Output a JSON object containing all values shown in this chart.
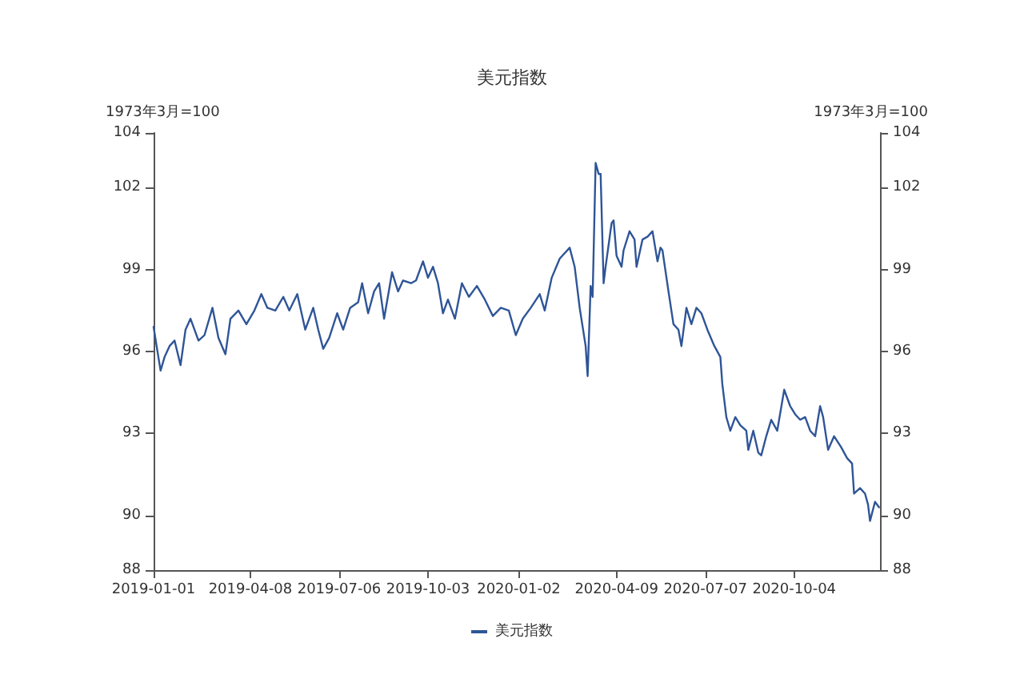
{
  "chart_data": {
    "type": "line",
    "title": "美元指数",
    "ylabel": "1973年3月=100",
    "y2label": "1973年3月=100",
    "xlim": [
      "2019-01-01",
      "2020-12-29"
    ],
    "xticks": [
      "2019-01-01",
      "2019-04-08",
      "2019-07-06",
      "2019-10-03",
      "2020-01-02",
      "2020-04-09",
      "2020-07-07",
      "2020-10-04"
    ],
    "ylim": [
      88,
      104
    ],
    "yticks": [
      88,
      90,
      93,
      96,
      99,
      102,
      104
    ],
    "y2lim": [
      88,
      104
    ],
    "y2ticks": [
      88,
      90,
      93,
      96,
      99,
      102,
      104
    ],
    "grid": false,
    "legend": "bottom",
    "marker": "none",
    "line_style": "solid",
    "x": [
      "2019-01-01",
      "2019-01-04",
      "2019-01-08",
      "2019-01-12",
      "2019-01-17",
      "2019-01-22",
      "2019-01-28",
      "2019-02-02",
      "2019-02-07",
      "2019-02-15",
      "2019-02-21",
      "2019-03-01",
      "2019-03-07",
      "2019-03-14",
      "2019-03-19",
      "2019-03-27",
      "2019-04-04",
      "2019-04-12",
      "2019-04-19",
      "2019-04-25",
      "2019-05-03",
      "2019-05-11",
      "2019-05-17",
      "2019-05-25",
      "2019-06-02",
      "2019-06-10",
      "2019-06-15",
      "2019-06-20",
      "2019-06-26",
      "2019-07-04",
      "2019-07-10",
      "2019-07-17",
      "2019-07-25",
      "2019-07-29",
      "2019-08-04",
      "2019-08-10",
      "2019-08-15",
      "2019-08-20",
      "2019-08-28",
      "2019-09-03",
      "2019-09-08",
      "2019-09-16",
      "2019-09-21",
      "2019-09-28",
      "2019-10-03",
      "2019-10-08",
      "2019-10-13",
      "2019-10-18",
      "2019-10-23",
      "2019-10-30",
      "2019-11-06",
      "2019-11-13",
      "2019-11-21",
      "2019-11-29",
      "2019-12-07",
      "2019-12-15",
      "2019-12-23",
      "2019-12-30",
      "2020-01-06",
      "2020-01-14",
      "2020-01-23",
      "2020-01-28",
      "2020-02-04",
      "2020-02-12",
      "2020-02-22",
      "2020-02-27",
      "2020-03-03",
      "2020-03-09",
      "2020-03-11",
      "2020-03-14",
      "2020-03-16",
      "2020-03-19",
      "2020-03-22",
      "2020-03-24",
      "2020-03-27",
      "2020-03-29",
      "2020-04-04",
      "2020-04-06",
      "2020-04-09",
      "2020-04-14",
      "2020-04-16",
      "2020-04-22",
      "2020-04-27",
      "2020-04-29",
      "2020-05-05",
      "2020-05-10",
      "2020-05-15",
      "2020-05-20",
      "2020-05-23",
      "2020-05-25",
      "2020-05-31",
      "2020-06-05",
      "2020-06-10",
      "2020-06-13",
      "2020-06-18",
      "2020-06-23",
      "2020-06-28",
      "2020-07-03",
      "2020-07-09",
      "2020-07-16",
      "2020-07-22",
      "2020-07-24",
      "2020-07-28",
      "2020-08-01",
      "2020-08-06",
      "2020-08-11",
      "2020-08-17",
      "2020-08-19",
      "2020-08-24",
      "2020-08-29",
      "2020-09-01",
      "2020-09-06",
      "2020-09-11",
      "2020-09-17",
      "2020-09-24",
      "2020-09-30",
      "2020-10-05",
      "2020-10-10",
      "2020-10-15",
      "2020-10-20",
      "2020-10-25",
      "2020-10-30",
      "2020-11-02",
      "2020-11-07",
      "2020-11-13",
      "2020-11-20",
      "2020-11-26",
      "2020-12-01",
      "2020-12-03",
      "2020-12-09",
      "2020-12-14",
      "2020-12-17",
      "2020-12-19",
      "2020-12-24",
      "2020-12-28"
    ],
    "series": [
      {
        "name": "美元指数",
        "color": "#2f5597",
        "values": [
          96.9,
          96.2,
          95.3,
          95.8,
          96.2,
          96.4,
          95.5,
          96.8,
          97.2,
          96.4,
          96.6,
          97.6,
          96.5,
          95.9,
          97.2,
          97.5,
          97.0,
          97.5,
          98.1,
          97.6,
          97.5,
          98.0,
          97.5,
          98.1,
          96.8,
          97.6,
          96.8,
          96.1,
          96.5,
          97.4,
          96.8,
          97.6,
          97.8,
          98.5,
          97.4,
          98.2,
          98.5,
          97.2,
          98.9,
          98.2,
          98.6,
          98.5,
          98.6,
          99.3,
          98.7,
          99.1,
          98.5,
          97.4,
          97.9,
          97.2,
          98.5,
          98.0,
          98.4,
          97.9,
          97.3,
          97.6,
          97.5,
          96.6,
          97.2,
          97.6,
          98.1,
          97.5,
          98.7,
          99.4,
          99.8,
          99.1,
          97.6,
          96.2,
          95.1,
          98.4,
          98.0,
          102.9,
          102.5,
          102.5,
          98.5,
          99.1,
          100.7,
          100.8,
          99.5,
          99.1,
          99.7,
          100.4,
          100.1,
          99.1,
          100.1,
          100.2,
          100.4,
          99.3,
          99.8,
          99.7,
          98.2,
          97.0,
          96.8,
          96.2,
          97.6,
          97.0,
          97.6,
          97.4,
          96.8,
          96.2,
          95.8,
          94.8,
          93.6,
          93.1,
          93.6,
          93.3,
          93.1,
          92.4,
          93.1,
          92.3,
          92.2,
          92.9,
          93.5,
          93.1,
          94.6,
          94.0,
          93.7,
          93.5,
          93.6,
          93.1,
          92.9,
          94.0,
          93.6,
          92.4,
          92.9,
          92.5,
          92.1,
          91.9,
          90.8,
          91.0,
          90.8,
          90.4,
          89.8,
          90.5,
          90.3
        ]
      }
    ]
  }
}
